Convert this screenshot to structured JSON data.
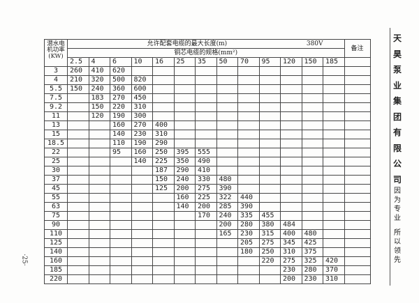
{
  "table": {
    "kw_header": "潜水电机功率(KW)",
    "title": "允许配套电缆的最大长度(m)",
    "voltage": "380V",
    "spec_header": "铜芯电缆的规格(mm²)",
    "remarks_header": "备注",
    "sizes": [
      "2.5",
      "4",
      "6",
      "10",
      "16",
      "25",
      "35",
      "50",
      "70",
      "95",
      "120",
      "150",
      "185"
    ],
    "rows": [
      {
        "kw": "3",
        "v": [
          "260",
          "410",
          "620",
          "",
          "",
          "",
          "",
          "",
          "",
          "",
          "",
          "",
          ""
        ]
      },
      {
        "kw": "4",
        "v": [
          "210",
          "320",
          "500",
          "820",
          "",
          "",
          "",
          "",
          "",
          "",
          "",
          "",
          ""
        ]
      },
      {
        "kw": "5.5",
        "v": [
          "150",
          "240",
          "360",
          "600",
          "",
          "",
          "",
          "",
          "",
          "",
          "",
          "",
          ""
        ]
      },
      {
        "kw": "7.5",
        "v": [
          "",
          "183",
          "270",
          "450",
          "",
          "",
          "",
          "",
          "",
          "",
          "",
          "",
          ""
        ]
      },
      {
        "kw": "9.2",
        "v": [
          "",
          "150",
          "220",
          "310",
          "",
          "",
          "",
          "",
          "",
          "",
          "",
          "",
          ""
        ]
      },
      {
        "kw": "11",
        "v": [
          "",
          "120",
          "190",
          "300",
          "",
          "",
          "",
          "",
          "",
          "",
          "",
          "",
          ""
        ]
      },
      {
        "kw": "13",
        "v": [
          "",
          "",
          "160",
          "270",
          "400",
          "",
          "",
          "",
          "",
          "",
          "",
          "",
          ""
        ]
      },
      {
        "kw": "15",
        "v": [
          "",
          "",
          "140",
          "230",
          "310",
          "",
          "",
          "",
          "",
          "",
          "",
          "",
          ""
        ]
      },
      {
        "kw": "18.5",
        "v": [
          "",
          "",
          "110",
          "190",
          "290",
          "",
          "",
          "",
          "",
          "",
          "",
          "",
          ""
        ]
      },
      {
        "kw": "22",
        "v": [
          "",
          "",
          "95",
          "160",
          "250",
          "395",
          "555",
          "",
          "",
          "",
          "",
          "",
          ""
        ]
      },
      {
        "kw": "25",
        "v": [
          "",
          "",
          "",
          "140",
          "225",
          "350",
          "490",
          "",
          "",
          "",
          "",
          "",
          ""
        ]
      },
      {
        "kw": "30",
        "v": [
          "",
          "",
          "",
          "",
          "187",
          "290",
          "410",
          "",
          "",
          "",
          "",
          "",
          ""
        ]
      },
      {
        "kw": "37",
        "v": [
          "",
          "",
          "",
          "",
          "150",
          "240",
          "330",
          "480",
          "",
          "",
          "",
          "",
          ""
        ]
      },
      {
        "kw": "45",
        "v": [
          "",
          "",
          "",
          "",
          "125",
          "200",
          "275",
          "390",
          "",
          "",
          "",
          "",
          ""
        ]
      },
      {
        "kw": "55",
        "v": [
          "",
          "",
          "",
          "",
          "",
          "160",
          "225",
          "322",
          "440",
          "",
          "",
          "",
          ""
        ]
      },
      {
        "kw": "63",
        "v": [
          "",
          "",
          "",
          "",
          "",
          "140",
          "200",
          "285",
          "390",
          "",
          "",
          "",
          ""
        ]
      },
      {
        "kw": "75",
        "v": [
          "",
          "",
          "",
          "",
          "",
          "",
          "170",
          "240",
          "335",
          "455",
          "",
          "",
          ""
        ]
      },
      {
        "kw": "90",
        "v": [
          "",
          "",
          "",
          "",
          "",
          "",
          "",
          "200",
          "280",
          "380",
          "484",
          "",
          ""
        ]
      },
      {
        "kw": "110",
        "v": [
          "",
          "",
          "",
          "",
          "",
          "",
          "",
          "165",
          "230",
          "315",
          "400",
          "480",
          ""
        ]
      },
      {
        "kw": "125",
        "v": [
          "",
          "",
          "",
          "",
          "",
          "",
          "",
          "",
          "205",
          "275",
          "345",
          "425",
          ""
        ]
      },
      {
        "kw": "140",
        "v": [
          "",
          "",
          "",
          "",
          "",
          "",
          "",
          "",
          "180",
          "250",
          "310",
          "375",
          ""
        ]
      },
      {
        "kw": "160",
        "v": [
          "",
          "",
          "",
          "",
          "",
          "",
          "",
          "",
          "",
          "220",
          "275",
          "325",
          "420"
        ]
      },
      {
        "kw": "185",
        "v": [
          "",
          "",
          "",
          "",
          "",
          "",
          "",
          "",
          "",
          "",
          "230",
          "280",
          "370"
        ]
      },
      {
        "kw": "220",
        "v": [
          "",
          "",
          "",
          "",
          "",
          "",
          "",
          "",
          "",
          "",
          "200",
          "230",
          "310"
        ]
      }
    ]
  },
  "company": "天昊泵业集团有限公司",
  "slogan": [
    "因为专业",
    "所以领先"
  ],
  "page_number": "·25·"
}
